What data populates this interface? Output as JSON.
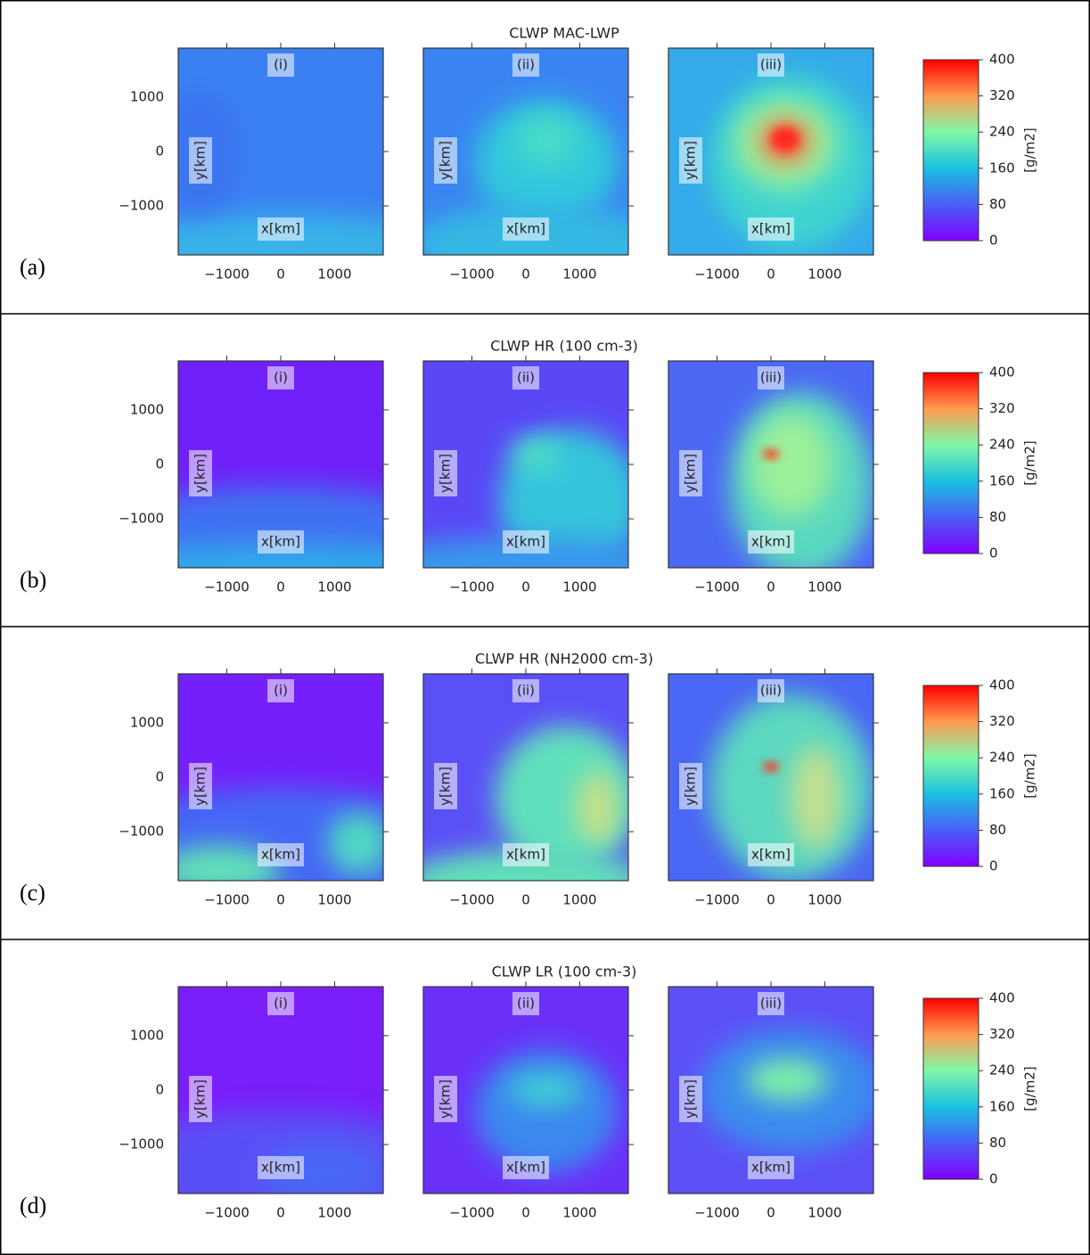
{
  "chart_data": [
    {
      "type": "contour",
      "label": "(a)",
      "title": "CLWP MAC-LWP",
      "panels": [
        "(i)",
        "(ii)",
        "(iii)"
      ],
      "xlabel": "x[km]",
      "ylabel": "y[km]",
      "xlim": [
        -1900,
        1900
      ],
      "ylim": [
        -1900,
        1900
      ],
      "xticks": [
        {
          "value": -1000,
          "label": "−1000"
        },
        0,
        1000
      ],
      "yticks": [
        {
          "value": -1000,
          "label": "−1000"
        },
        0,
        1000
      ],
      "colorbar": {
        "label": "[g/m2]",
        "lim": [
          0,
          400
        ],
        "ticks": [
          0,
          80,
          160,
          240,
          320,
          400
        ]
      }
    },
    {
      "type": "contour",
      "label": "(b)",
      "title": "CLWP HR (100 cm-3)",
      "panels": [
        "(i)",
        "(ii)",
        "(iii)"
      ],
      "xlabel": "x[km]",
      "ylabel": "y[km]",
      "xlim": [
        -1900,
        1900
      ],
      "ylim": [
        -1900,
        1900
      ],
      "xticks": [
        {
          "value": -1000,
          "label": "−1000"
        },
        0,
        1000
      ],
      "yticks": [
        {
          "value": -1000,
          "label": "−1000"
        },
        0,
        1000
      ],
      "colorbar": {
        "label": "[g/m2]",
        "lim": [
          0,
          400
        ],
        "ticks": [
          0,
          80,
          160,
          240,
          320,
          400
        ]
      }
    },
    {
      "type": "contour",
      "label": "(c)",
      "title": "CLWP HR (NH2000 cm-3)",
      "panels": [
        "(i)",
        "(ii)",
        "(iii)"
      ],
      "xlabel": "x[km]",
      "ylabel": "y[km]",
      "xlim": [
        -1900,
        1900
      ],
      "ylim": [
        -1900,
        1900
      ],
      "xticks": [
        {
          "value": -1000,
          "label": "−1000"
        },
        0,
        1000
      ],
      "yticks": [
        {
          "value": -1000,
          "label": "−1000"
        },
        0,
        1000
      ],
      "colorbar": {
        "label": "[g/m2]",
        "lim": [
          0,
          400
        ],
        "ticks": [
          0,
          80,
          160,
          240,
          320,
          400
        ]
      }
    },
    {
      "type": "contour",
      "label": "(d)",
      "title": "CLWP LR (100 cm-3)",
      "panels": [
        "(i)",
        "(ii)",
        "(iii)"
      ],
      "xlabel": "x[km]",
      "ylabel": "y[km]",
      "xlim": [
        -1900,
        1900
      ],
      "ylim": [
        -1900,
        1900
      ],
      "xticks": [
        {
          "value": -1000,
          "label": "−1000"
        },
        0,
        1000
      ],
      "yticks": [
        {
          "value": -1000,
          "label": "−1000"
        },
        0,
        1000
      ],
      "colorbar": {
        "label": "[g/m2]",
        "lim": [
          0,
          400
        ],
        "ticks": [
          0,
          80,
          160,
          240,
          320,
          400
        ]
      }
    }
  ]
}
